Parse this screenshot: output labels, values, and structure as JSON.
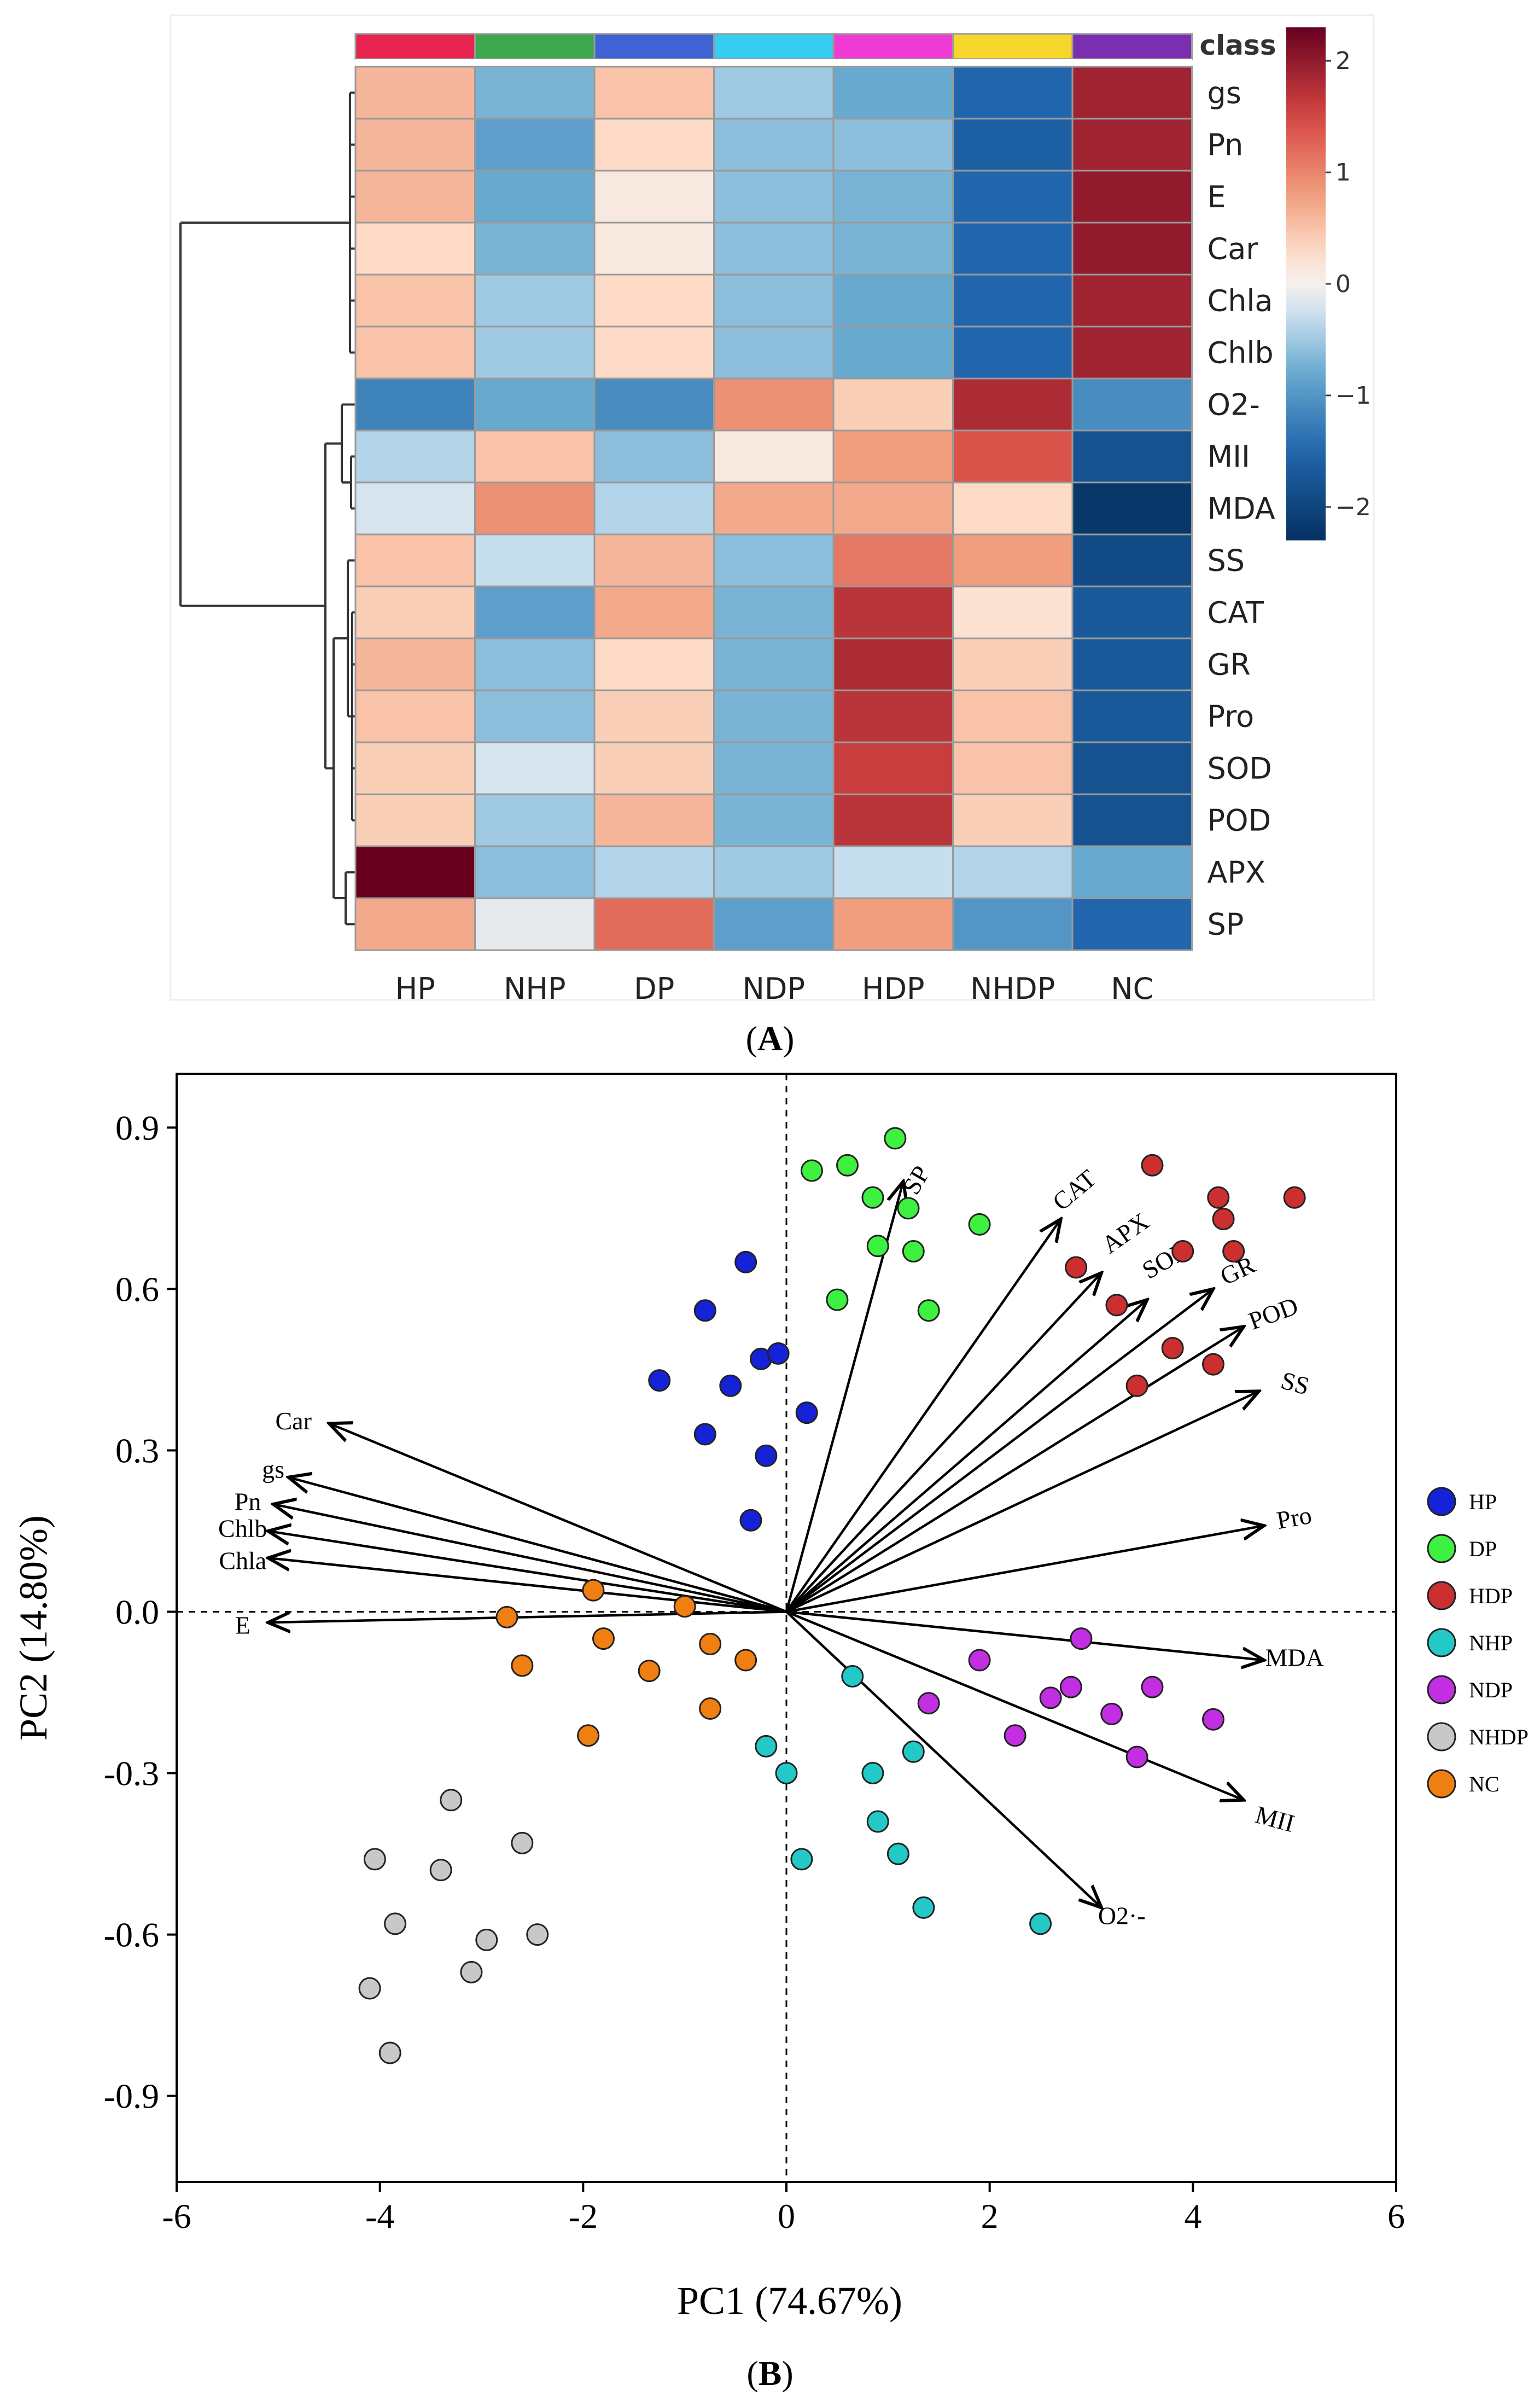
{
  "panel_labels": {
    "a": "A",
    "b": "B"
  },
  "chart_data": [
    {
      "type": "heatmap",
      "columns": [
        "HP",
        "NHP",
        "DP",
        "NDP",
        "HDP",
        "NHDP",
        "NC"
      ],
      "class_label": "class",
      "class_colors": [
        "#e8234f",
        "#3da84e",
        "#3f63d5",
        "#36cdf2",
        "#ef3bd4",
        "#f6d62a",
        "#7a2fb0"
      ],
      "rows": [
        "gs",
        "Pn",
        "E",
        "Car",
        "Chla",
        "Chlb",
        "O2-",
        "MII",
        "MDA",
        "SS",
        "CAT",
        "GR",
        "Pro",
        "SOD",
        "POD",
        "APX",
        "SP"
      ],
      "values": [
        [
          0.6,
          -0.7,
          0.5,
          -0.5,
          -0.8,
          -1.5,
          1.9
        ],
        [
          0.6,
          -0.9,
          0.3,
          -0.6,
          -0.6,
          -1.6,
          1.9
        ],
        [
          0.6,
          -0.8,
          0.1,
          -0.6,
          -0.7,
          -1.5,
          2.0
        ],
        [
          0.3,
          -0.7,
          0.1,
          -0.6,
          -0.7,
          -1.5,
          2.0
        ],
        [
          0.5,
          -0.5,
          0.3,
          -0.6,
          -0.8,
          -1.5,
          1.9
        ],
        [
          0.5,
          -0.5,
          0.3,
          -0.6,
          -0.8,
          -1.5,
          1.9
        ],
        [
          -1.2,
          -0.8,
          -1.1,
          0.9,
          0.4,
          1.8,
          -1.1
        ],
        [
          -0.4,
          0.5,
          -0.6,
          0.1,
          0.8,
          1.4,
          -1.8
        ],
        [
          -0.2,
          0.9,
          -0.4,
          0.7,
          0.7,
          0.3,
          -2.2
        ],
        [
          0.5,
          -0.3,
          0.6,
          -0.6,
          1.1,
          0.8,
          -1.9
        ],
        [
          0.4,
          -0.9,
          0.7,
          -0.7,
          1.7,
          0.2,
          -1.7
        ],
        [
          0.6,
          -0.6,
          0.3,
          -0.7,
          1.8,
          0.4,
          -1.7
        ],
        [
          0.5,
          -0.6,
          0.4,
          -0.7,
          1.7,
          0.5,
          -1.7
        ],
        [
          0.4,
          -0.2,
          0.4,
          -0.7,
          1.6,
          0.5,
          -1.8
        ],
        [
          0.4,
          -0.5,
          0.6,
          -0.7,
          1.7,
          0.4,
          -1.8
        ],
        [
          2.4,
          -0.6,
          -0.4,
          -0.5,
          -0.3,
          -0.4,
          -0.8
        ],
        [
          0.7,
          -0.1,
          1.2,
          -0.9,
          0.8,
          -1.0,
          -1.5
        ]
      ],
      "colorbar": {
        "ticks": [
          2,
          1,
          0,
          -1,
          -2
        ],
        "range": [
          -2.3,
          2.3
        ]
      }
    },
    {
      "type": "scatter",
      "xlabel": "PC1 (74.67%)",
      "ylabel": "PC2 (14.80%)",
      "xlim": [
        -6,
        6
      ],
      "ylim": [
        -1.06,
        1.0
      ],
      "xticks": [
        -6,
        -4,
        -2,
        0,
        2,
        4,
        6
      ],
      "yticks": [
        0.9,
        0.6,
        0.3,
        0.0,
        -0.3,
        -0.6,
        -0.9
      ],
      "ytick_labels": [
        "0.9",
        "0.6",
        "0.3",
        "0.0",
        "-0.3",
        "-0.6",
        "-0.9"
      ],
      "legend_position": "right",
      "series": [
        {
          "name": "HP",
          "color": "#1522d8",
          "points": [
            [
              -0.4,
              0.65
            ],
            [
              -0.8,
              0.56
            ],
            [
              -0.25,
              0.47
            ],
            [
              -0.08,
              0.48
            ],
            [
              -1.25,
              0.43
            ],
            [
              -0.55,
              0.42
            ],
            [
              0.2,
              0.37
            ],
            [
              -0.8,
              0.33
            ],
            [
              -0.2,
              0.29
            ],
            [
              -0.35,
              0.17
            ]
          ]
        },
        {
          "name": "DP",
          "color": "#3ef040",
          "points": [
            [
              1.07,
              0.88
            ],
            [
              0.25,
              0.82
            ],
            [
              0.6,
              0.83
            ],
            [
              0.85,
              0.77
            ],
            [
              1.2,
              0.75
            ],
            [
              1.9,
              0.72
            ],
            [
              0.9,
              0.68
            ],
            [
              1.25,
              0.67
            ],
            [
              0.5,
              0.58
            ],
            [
              1.4,
              0.56
            ]
          ]
        },
        {
          "name": "HDP",
          "color": "#cc2f2f",
          "points": [
            [
              3.6,
              0.83
            ],
            [
              4.25,
              0.77
            ],
            [
              5.0,
              0.77
            ],
            [
              4.3,
              0.73
            ],
            [
              2.85,
              0.64
            ],
            [
              3.9,
              0.67
            ],
            [
              4.4,
              0.67
            ],
            [
              3.25,
              0.57
            ],
            [
              3.8,
              0.49
            ],
            [
              4.2,
              0.46
            ],
            [
              3.45,
              0.42
            ]
          ]
        },
        {
          "name": "NHP",
          "color": "#22c9c6",
          "points": [
            [
              0.65,
              -0.12
            ],
            [
              1.25,
              -0.26
            ],
            [
              -0.2,
              -0.25
            ],
            [
              0.0,
              -0.3
            ],
            [
              0.85,
              -0.3
            ],
            [
              0.9,
              -0.39
            ],
            [
              1.1,
              -0.45
            ],
            [
              0.15,
              -0.46
            ],
            [
              1.35,
              -0.55
            ],
            [
              2.5,
              -0.58
            ]
          ]
        },
        {
          "name": "NDP",
          "color": "#c22ee2",
          "points": [
            [
              2.9,
              -0.05
            ],
            [
              1.9,
              -0.09
            ],
            [
              3.6,
              -0.14
            ],
            [
              2.8,
              -0.14
            ],
            [
              2.6,
              -0.16
            ],
            [
              1.4,
              -0.17
            ],
            [
              3.2,
              -0.19
            ],
            [
              4.2,
              -0.2
            ],
            [
              2.25,
              -0.23
            ],
            [
              3.45,
              -0.27
            ]
          ]
        },
        {
          "name": "NHDP",
          "color": "#c8c8c8",
          "points": [
            [
              -3.3,
              -0.35
            ],
            [
              -2.6,
              -0.43
            ],
            [
              -4.05,
              -0.46
            ],
            [
              -3.4,
              -0.48
            ],
            [
              -3.85,
              -0.58
            ],
            [
              -2.45,
              -0.6
            ],
            [
              -2.95,
              -0.61
            ],
            [
              -3.1,
              -0.67
            ],
            [
              -4.1,
              -0.7
            ],
            [
              -3.9,
              -0.82
            ]
          ]
        },
        {
          "name": "NC",
          "color": "#f07f12",
          "points": [
            [
              -1.9,
              0.04
            ],
            [
              -1.0,
              0.01
            ],
            [
              -2.75,
              -0.01
            ],
            [
              -1.8,
              -0.05
            ],
            [
              -0.75,
              -0.06
            ],
            [
              -2.6,
              -0.1
            ],
            [
              -1.35,
              -0.11
            ],
            [
              -0.4,
              -0.09
            ],
            [
              -0.75,
              -0.18
            ],
            [
              -1.95,
              -0.23
            ]
          ]
        }
      ],
      "loadings": [
        {
          "name": "SP",
          "x": 1.15,
          "y": 0.8,
          "lx": 1.3,
          "ly": 0.8,
          "rot": -60
        },
        {
          "name": "CAT",
          "x": 2.7,
          "y": 0.73,
          "lx": 2.85,
          "ly": 0.78,
          "rot": -40
        },
        {
          "name": "APX",
          "x": 3.1,
          "y": 0.63,
          "lx": 3.35,
          "ly": 0.7,
          "rot": -35
        },
        {
          "name": "SOD",
          "x": 3.55,
          "y": 0.58,
          "lx": 3.75,
          "ly": 0.65,
          "rot": -30
        },
        {
          "name": "GR",
          "x": 4.2,
          "y": 0.6,
          "lx": 4.45,
          "ly": 0.63,
          "rot": -25
        },
        {
          "name": "POD",
          "x": 4.5,
          "y": 0.53,
          "lx": 4.8,
          "ly": 0.55,
          "rot": -20
        },
        {
          "name": "SS",
          "x": 4.65,
          "y": 0.41,
          "lx": 5.0,
          "ly": 0.42,
          "rot": 15
        },
        {
          "name": "Pro",
          "x": 4.7,
          "y": 0.16,
          "lx": 5.0,
          "ly": 0.17,
          "rot": -10
        },
        {
          "name": "MDA",
          "x": 4.7,
          "y": -0.09,
          "lx": 5.0,
          "ly": -0.09,
          "rot": 0
        },
        {
          "name": "MII",
          "x": 4.5,
          "y": -0.35,
          "lx": 4.8,
          "ly": -0.39,
          "rot": 15
        },
        {
          "name": "O2·-",
          "x": 3.1,
          "y": -0.55,
          "lx": 3.3,
          "ly": -0.57,
          "rot": 0
        },
        {
          "name": "Car",
          "x": -4.5,
          "y": 0.35,
          "lx": -4.85,
          "ly": 0.35,
          "rot": 0
        },
        {
          "name": "gs",
          "x": -4.9,
          "y": 0.25,
          "lx": -5.05,
          "ly": 0.26,
          "rot": 0
        },
        {
          "name": "Pn",
          "x": -5.05,
          "y": 0.2,
          "lx": -5.3,
          "ly": 0.2,
          "rot": 0
        },
        {
          "name": "Chlb",
          "x": -5.1,
          "y": 0.15,
          "lx": -5.35,
          "ly": 0.15,
          "rot": 0
        },
        {
          "name": "Chla",
          "x": -5.1,
          "y": 0.1,
          "lx": -5.35,
          "ly": 0.09,
          "rot": 0
        },
        {
          "name": "E",
          "x": -5.1,
          "y": -0.02,
          "lx": -5.35,
          "ly": -0.03,
          "rot": 0
        }
      ]
    }
  ]
}
